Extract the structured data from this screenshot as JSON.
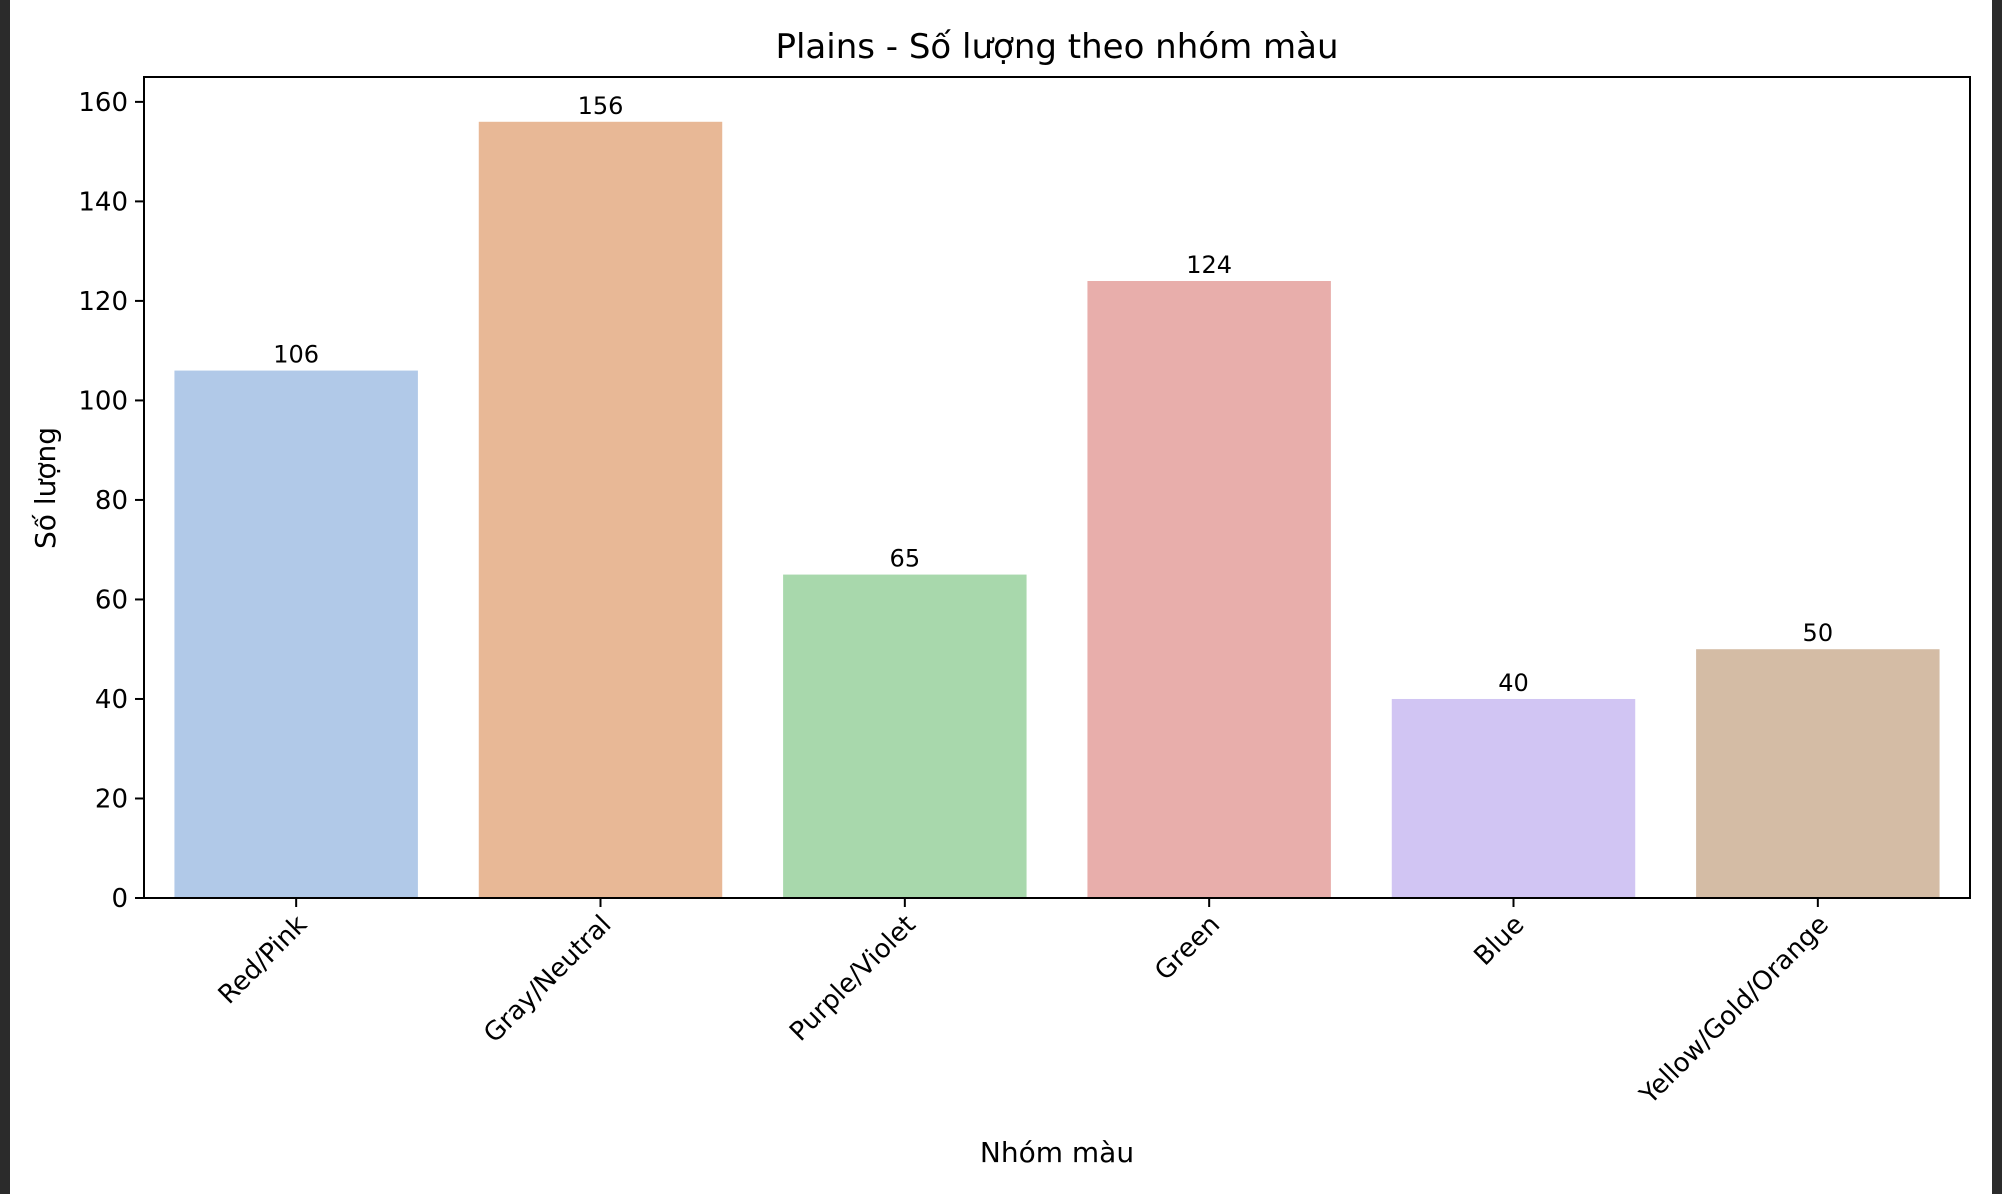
{
  "chart_data": {
    "type": "bar",
    "title": "Plains - Số lượng theo nhóm màu",
    "xlabel": "Nhóm màu",
    "ylabel": "Số lượng",
    "ylim": [
      0,
      165
    ],
    "yticks": [
      0,
      20,
      40,
      60,
      80,
      100,
      120,
      140,
      160
    ],
    "grid": false,
    "categories": [
      "Red/Pink",
      "Gray/Neutral",
      "Purple/Violet",
      "Green",
      "Blue",
      "Yellow/Gold/Orange"
    ],
    "values": [
      106,
      156,
      65,
      124,
      40,
      50
    ],
    "colors": [
      "#b1c9e8",
      "#e8b896",
      "#a8d8ac",
      "#e8aeab",
      "#d1c5f3",
      "#d4bca5"
    ]
  }
}
